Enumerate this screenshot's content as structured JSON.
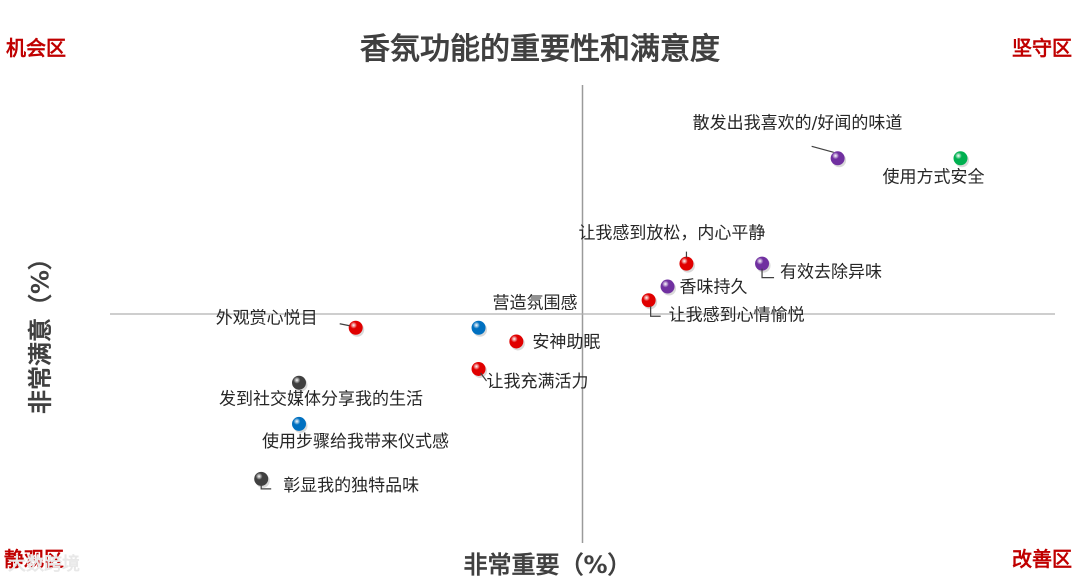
{
  "chart_data": {
    "type": "scatter",
    "title": "香氛功能的重要性和满意度",
    "xlabel": "非常重要（%）",
    "ylabel": "非常满意（%）",
    "quadrants": {
      "top_left": "机会区",
      "top_right": "坚守区",
      "bottom_left": "静观区",
      "bottom_right": "改善区"
    },
    "xlim": [
      0,
      100
    ],
    "ylim": [
      0,
      100
    ],
    "divider": {
      "x": 50,
      "y": 50
    },
    "grid": false,
    "legend": "none",
    "points": [
      {
        "label": "散发出我喜欢的/好闻的味道",
        "x": 77,
        "y": 84,
        "color": "#7030a0"
      },
      {
        "label": "使用方式安全",
        "x": 90,
        "y": 84,
        "color": "#00b050"
      },
      {
        "label": "让我感到放松，内心平静",
        "x": 61,
        "y": 61,
        "color": "#e00000"
      },
      {
        "label": "有效去除异味",
        "x": 69,
        "y": 61,
        "color": "#7030a0"
      },
      {
        "label": "香味持久",
        "x": 59,
        "y": 56,
        "color": "#7030a0"
      },
      {
        "label": "让我感到心情愉悦",
        "x": 57,
        "y": 53,
        "color": "#e00000"
      },
      {
        "label": "外观赏心悦目",
        "x": 26,
        "y": 47,
        "color": "#e00000"
      },
      {
        "label": "营造氛围感",
        "x": 39,
        "y": 47,
        "color": "#0070c0"
      },
      {
        "label": "安神助眠",
        "x": 43,
        "y": 44,
        "color": "#e00000"
      },
      {
        "label": "让我充满活力",
        "x": 39,
        "y": 38,
        "color": "#e00000"
      },
      {
        "label": "发到社交媒体分享我的生活",
        "x": 20,
        "y": 35,
        "color": "#404040"
      },
      {
        "label": "使用步骤给我带来仪式感",
        "x": 20,
        "y": 26,
        "color": "#0070c0"
      },
      {
        "label": "彰显我的独特品味",
        "x": 16,
        "y": 14,
        "color": "#404040"
      }
    ]
  },
  "watermark": "大数跨境"
}
